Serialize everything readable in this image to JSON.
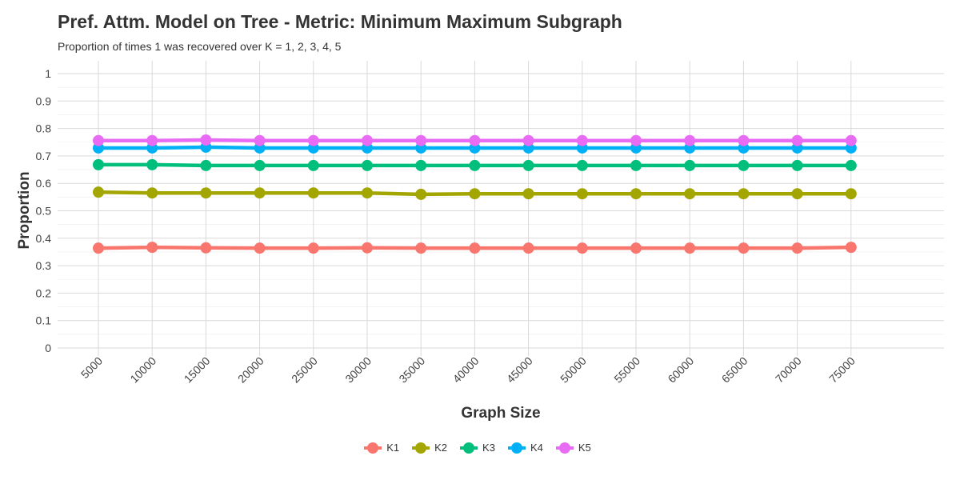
{
  "chart_data": {
    "type": "line",
    "title": "Pref. Attm. Model on Tree - Metric: Minimum Maximum Subgraph",
    "subtitle": "Proportion of times 1 was recovered over K = 1, 2, 3, 4, 5",
    "xlabel": "Graph Size",
    "ylabel": "Proportion",
    "x": [
      5000,
      10000,
      15000,
      20000,
      25000,
      30000,
      35000,
      40000,
      45000,
      50000,
      55000,
      60000,
      65000,
      70000,
      75000
    ],
    "x_tick_labels": [
      "5000",
      "10000",
      "15000",
      "20000",
      "25000",
      "30000",
      "35000",
      "40000",
      "45000",
      "50000",
      "55000",
      "60000",
      "65000",
      "70000",
      "75000"
    ],
    "ylim": [
      0,
      1
    ],
    "y_ticks": [
      0,
      0.1,
      0.2,
      0.3,
      0.4,
      0.5,
      0.6,
      0.7,
      0.8,
      0.9,
      1
    ],
    "y_tick_labels": [
      "0",
      "0.1",
      "0.2",
      "0.3",
      "0.4",
      "0.5",
      "0.6",
      "0.7",
      "0.8",
      "0.9",
      "1"
    ],
    "grid": true,
    "legend_position": "bottom",
    "series": [
      {
        "name": "K1",
        "color": "#F8766D",
        "values": [
          0.364,
          0.367,
          0.365,
          0.364,
          0.364,
          0.365,
          0.364,
          0.364,
          0.364,
          0.364,
          0.364,
          0.364,
          0.364,
          0.364,
          0.367
        ]
      },
      {
        "name": "K2",
        "color": "#A3A500",
        "values": [
          0.568,
          0.565,
          0.565,
          0.565,
          0.565,
          0.565,
          0.56,
          0.562,
          0.562,
          0.562,
          0.562,
          0.562,
          0.562,
          0.562,
          0.562
        ]
      },
      {
        "name": "K3",
        "color": "#00BF7D",
        "values": [
          0.668,
          0.668,
          0.665,
          0.665,
          0.665,
          0.665,
          0.665,
          0.665,
          0.665,
          0.665,
          0.665,
          0.665,
          0.665,
          0.665,
          0.665
        ]
      },
      {
        "name": "K4",
        "color": "#00B0F6",
        "values": [
          0.729,
          0.729,
          0.732,
          0.729,
          0.729,
          0.729,
          0.729,
          0.729,
          0.729,
          0.729,
          0.729,
          0.729,
          0.729,
          0.729,
          0.729
        ]
      },
      {
        "name": "K5",
        "color": "#E76BF3",
        "values": [
          0.756,
          0.756,
          0.758,
          0.756,
          0.756,
          0.756,
          0.756,
          0.756,
          0.756,
          0.756,
          0.756,
          0.756,
          0.756,
          0.756,
          0.756
        ]
      }
    ]
  }
}
